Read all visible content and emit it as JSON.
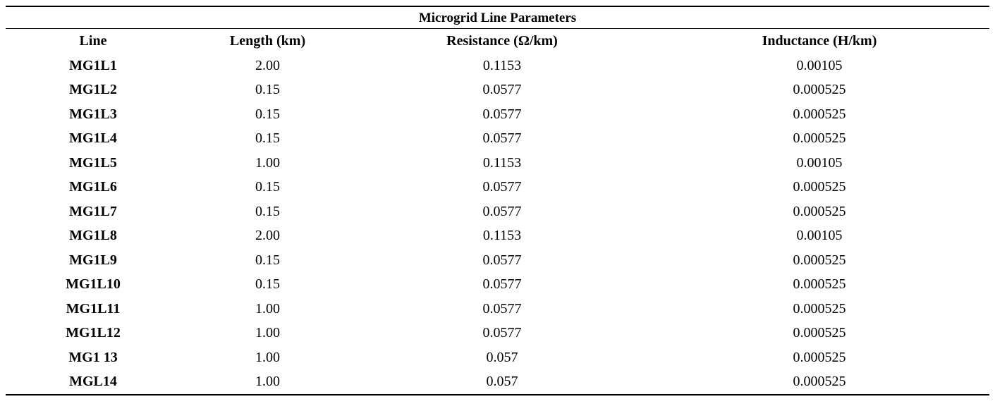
{
  "table": {
    "title": "Microgrid Line Parameters",
    "headers": [
      "Line",
      "Length (km)",
      "Resistance (Ω/km)",
      "Inductance (H/km)"
    ],
    "rows": [
      [
        "MG1L1",
        "2.00",
        "0.1153",
        "0.00105"
      ],
      [
        "MG1L2",
        "0.15",
        "0.0577",
        "0.000525"
      ],
      [
        "MG1L3",
        "0.15",
        "0.0577",
        "0.000525"
      ],
      [
        "MG1L4",
        "0.15",
        "0.0577",
        "0.000525"
      ],
      [
        "MG1L5",
        "1.00",
        "0.1153",
        "0.00105"
      ],
      [
        "MG1L6",
        "0.15",
        "0.0577",
        "0.000525"
      ],
      [
        "MG1L7",
        "0.15",
        "0.0577",
        "0.000525"
      ],
      [
        "MG1L8",
        "2.00",
        "0.1153",
        "0.00105"
      ],
      [
        "MG1L9",
        "0.15",
        "0.0577",
        "0.000525"
      ],
      [
        "MG1L10",
        "0.15",
        "0.0577",
        "0.000525"
      ],
      [
        "MG1L11",
        "1.00",
        "0.0577",
        "0.000525"
      ],
      [
        "MG1L12",
        "1.00",
        "0.0577",
        "0.000525"
      ],
      [
        "MG1 13",
        "1.00",
        "0.057",
        "0.000525"
      ],
      [
        "MGL14",
        "1.00",
        "0.057",
        "0.000525"
      ]
    ]
  }
}
